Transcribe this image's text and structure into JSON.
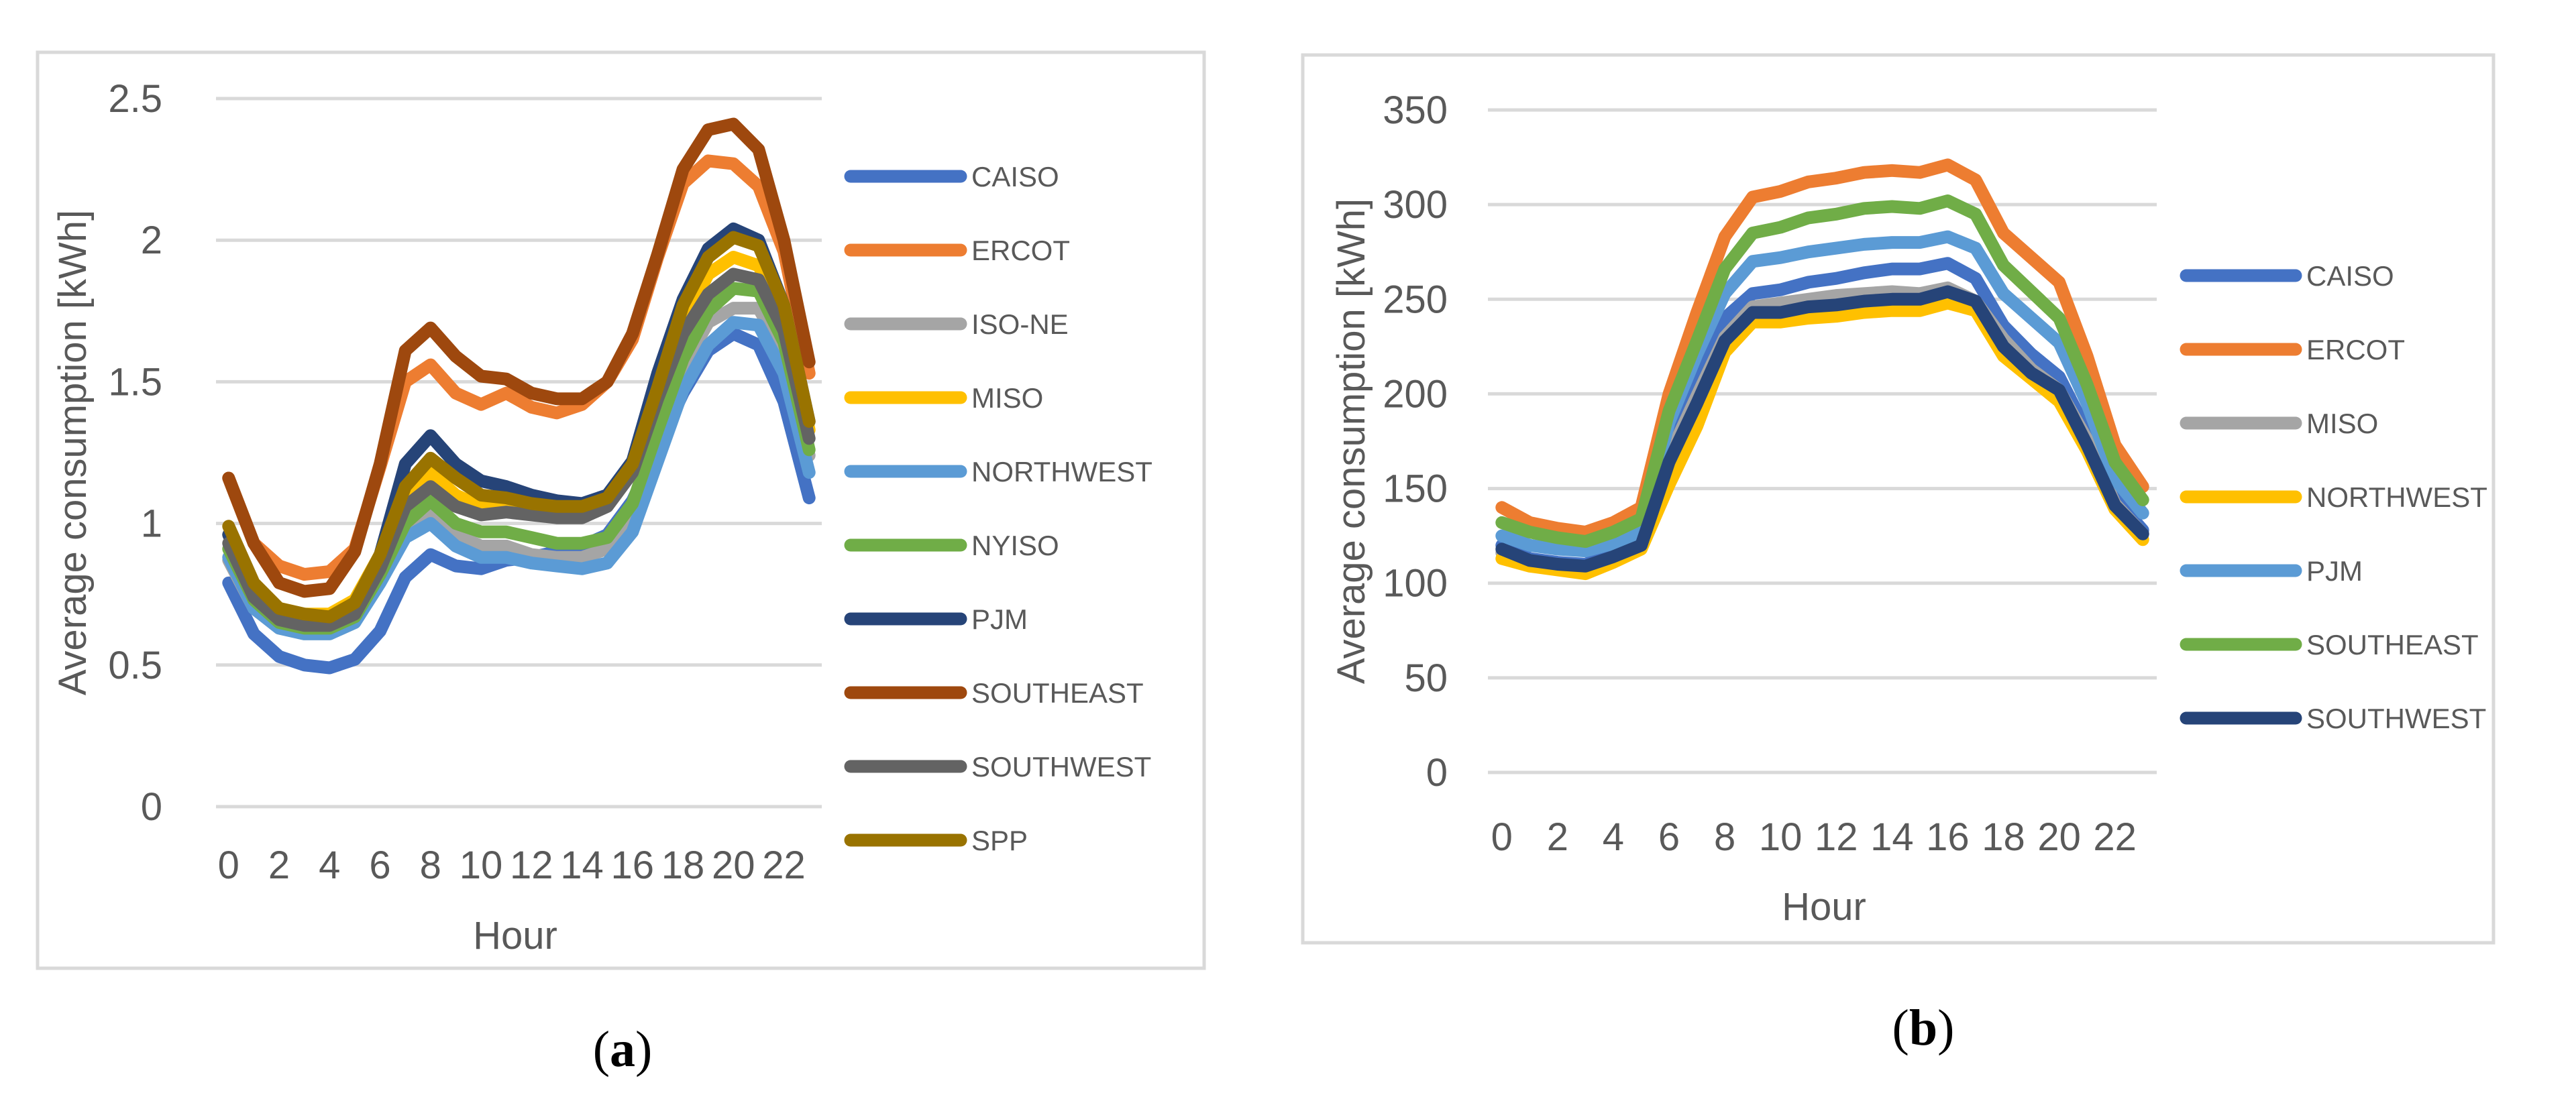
{
  "chart_data": [
    {
      "type": "line",
      "caption": "(a)",
      "caption_letter": "a",
      "xlabel": "Hour",
      "ylabel": "Average consumption [kWh]",
      "x": [
        0,
        1,
        2,
        3,
        4,
        5,
        6,
        7,
        8,
        9,
        10,
        11,
        12,
        13,
        14,
        15,
        16,
        17,
        18,
        19,
        20,
        21,
        22,
        23
      ],
      "x_ticks": [
        "0",
        "2",
        "4",
        "6",
        "8",
        "10",
        "12",
        "14",
        "16",
        "18",
        "20",
        "22"
      ],
      "ylim": [
        0,
        2.5
      ],
      "y_ticks": [
        "0",
        "0.5",
        "1",
        "1.5",
        "2",
        "2.5"
      ],
      "grid": "horizontal",
      "legend_position": "right",
      "series": [
        {
          "name": "CAISO",
          "color": "#4472C4",
          "values": [
            0.79,
            0.61,
            0.53,
            0.5,
            0.49,
            0.52,
            0.62,
            0.81,
            0.89,
            0.85,
            0.84,
            0.87,
            0.88,
            0.9,
            0.92,
            0.96,
            1.08,
            1.27,
            1.46,
            1.61,
            1.67,
            1.63,
            1.43,
            1.09
          ]
        },
        {
          "name": "ERCOT",
          "color": "#ED7D31",
          "values": [
            1.16,
            0.93,
            0.85,
            0.82,
            0.83,
            0.91,
            1.2,
            1.5,
            1.56,
            1.46,
            1.42,
            1.46,
            1.41,
            1.39,
            1.42,
            1.5,
            1.65,
            1.94,
            2.2,
            2.28,
            2.27,
            2.19,
            1.96,
            1.53
          ]
        },
        {
          "name": "ISO-NE",
          "color": "#A5A5A5",
          "values": [
            0.87,
            0.7,
            0.63,
            0.61,
            0.61,
            0.65,
            0.8,
            0.98,
            1.05,
            0.96,
            0.92,
            0.92,
            0.89,
            0.88,
            0.88,
            0.91,
            1.02,
            1.28,
            1.55,
            1.71,
            1.76,
            1.76,
            1.6,
            1.24
          ]
        },
        {
          "name": "MISO",
          "color": "#FFC000",
          "values": [
            0.96,
            0.78,
            0.7,
            0.68,
            0.68,
            0.73,
            0.89,
            1.1,
            1.18,
            1.1,
            1.06,
            1.06,
            1.04,
            1.03,
            1.03,
            1.07,
            1.2,
            1.45,
            1.71,
            1.88,
            1.94,
            1.91,
            1.73,
            1.33
          ]
        },
        {
          "name": "NORTHWEST",
          "color": "#5B9BD5",
          "values": [
            0.88,
            0.7,
            0.63,
            0.61,
            0.61,
            0.65,
            0.79,
            0.95,
            1.0,
            0.92,
            0.88,
            0.88,
            0.86,
            0.85,
            0.84,
            0.86,
            0.97,
            1.22,
            1.47,
            1.63,
            1.71,
            1.7,
            1.53,
            1.18
          ]
        },
        {
          "name": "NYISO",
          "color": "#70AD47",
          "values": [
            0.91,
            0.73,
            0.65,
            0.63,
            0.63,
            0.67,
            0.82,
            1.0,
            1.08,
            1.0,
            0.97,
            0.97,
            0.95,
            0.93,
            0.93,
            0.95,
            1.07,
            1.33,
            1.58,
            1.75,
            1.83,
            1.82,
            1.64,
            1.26
          ]
        },
        {
          "name": "PJM",
          "color": "#264478",
          "values": [
            0.96,
            0.77,
            0.68,
            0.66,
            0.66,
            0.71,
            0.89,
            1.21,
            1.31,
            1.21,
            1.15,
            1.13,
            1.1,
            1.08,
            1.07,
            1.1,
            1.22,
            1.53,
            1.79,
            1.97,
            2.04,
            2.0,
            1.77,
            1.36
          ]
        },
        {
          "name": "SOUTHEAST",
          "color": "#9E480E",
          "values": [
            1.16,
            0.93,
            0.79,
            0.76,
            0.77,
            0.9,
            1.21,
            1.61,
            1.69,
            1.59,
            1.52,
            1.51,
            1.46,
            1.44,
            1.44,
            1.5,
            1.67,
            1.95,
            2.25,
            2.39,
            2.41,
            2.32,
            2.0,
            1.57
          ]
        },
        {
          "name": "SOUTHWEST",
          "color": "#636363",
          "values": [
            0.93,
            0.74,
            0.66,
            0.64,
            0.64,
            0.68,
            0.84,
            1.06,
            1.13,
            1.06,
            1.03,
            1.04,
            1.03,
            1.02,
            1.02,
            1.06,
            1.18,
            1.44,
            1.67,
            1.81,
            1.88,
            1.86,
            1.68,
            1.3
          ]
        },
        {
          "name": "SPP",
          "color": "#997300",
          "values": [
            0.99,
            0.79,
            0.7,
            0.68,
            0.67,
            0.72,
            0.89,
            1.13,
            1.23,
            1.16,
            1.1,
            1.09,
            1.07,
            1.06,
            1.06,
            1.09,
            1.21,
            1.48,
            1.77,
            1.94,
            2.01,
            1.98,
            1.77,
            1.36
          ]
        }
      ]
    },
    {
      "type": "line",
      "caption": "(b)",
      "caption_letter": "b",
      "xlabel": "Hour",
      "ylabel": "Average consumption [kWh]",
      "x": [
        0,
        1,
        2,
        3,
        4,
        5,
        6,
        7,
        8,
        9,
        10,
        11,
        12,
        13,
        14,
        15,
        16,
        17,
        18,
        19,
        20,
        21,
        22,
        23
      ],
      "x_ticks": [
        "0",
        "2",
        "4",
        "6",
        "8",
        "10",
        "12",
        "14",
        "16",
        "18",
        "20",
        "22"
      ],
      "ylim": [
        0,
        350
      ],
      "y_ticks": [
        "0",
        "50",
        "100",
        "150",
        "200",
        "250",
        "300",
        "350"
      ],
      "grid": "horizontal",
      "legend_position": "right",
      "series": [
        {
          "name": "CAISO",
          "color": "#4472C4",
          "values": [
            120,
            113,
            111,
            110,
            116,
            121,
            175,
            208,
            240,
            253,
            255,
            259,
            261,
            264,
            266,
            266,
            269,
            261,
            236,
            221,
            209,
            180,
            145,
            128
          ]
        },
        {
          "name": "ERCOT",
          "color": "#ED7D31",
          "values": [
            140,
            132,
            129,
            127,
            132,
            140,
            200,
            243,
            283,
            304,
            307,
            312,
            314,
            317,
            318,
            317,
            321,
            313,
            285,
            272,
            259,
            220,
            173,
            151
          ]
        },
        {
          "name": "MISO",
          "color": "#A5A5A5",
          "values": [
            116,
            111,
            110,
            108,
            114,
            120,
            167,
            199,
            230,
            246,
            248,
            250,
            252,
            253,
            254,
            253,
            256,
            249,
            229,
            213,
            202,
            176,
            142,
            126
          ]
        },
        {
          "name": "NORTHWEST",
          "color": "#FFC000",
          "values": [
            113,
            109,
            107,
            105,
            111,
            118,
            152,
            183,
            222,
            238,
            238,
            240,
            241,
            243,
            244,
            244,
            248,
            244,
            220,
            208,
            196,
            170,
            139,
            123
          ]
        },
        {
          "name": "PJM",
          "color": "#5B9BD5",
          "values": [
            125,
            120,
            118,
            117,
            121,
            127,
            185,
            221,
            253,
            270,
            272,
            275,
            277,
            279,
            280,
            280,
            283,
            277,
            253,
            240,
            227,
            195,
            155,
            137
          ]
        },
        {
          "name": "SOUTHEAST",
          "color": "#70AD47",
          "values": [
            132,
            127,
            124,
            122,
            127,
            134,
            191,
            228,
            266,
            285,
            288,
            293,
            295,
            298,
            299,
            298,
            302,
            295,
            268,
            254,
            240,
            205,
            164,
            144
          ]
        },
        {
          "name": "SOUTHWEST",
          "color": "#264478",
          "values": [
            118,
            112,
            110,
            109,
            114,
            120,
            164,
            195,
            228,
            243,
            243,
            246,
            247,
            249,
            250,
            250,
            254,
            249,
            225,
            211,
            202,
            173,
            141,
            126
          ]
        }
      ]
    }
  ]
}
